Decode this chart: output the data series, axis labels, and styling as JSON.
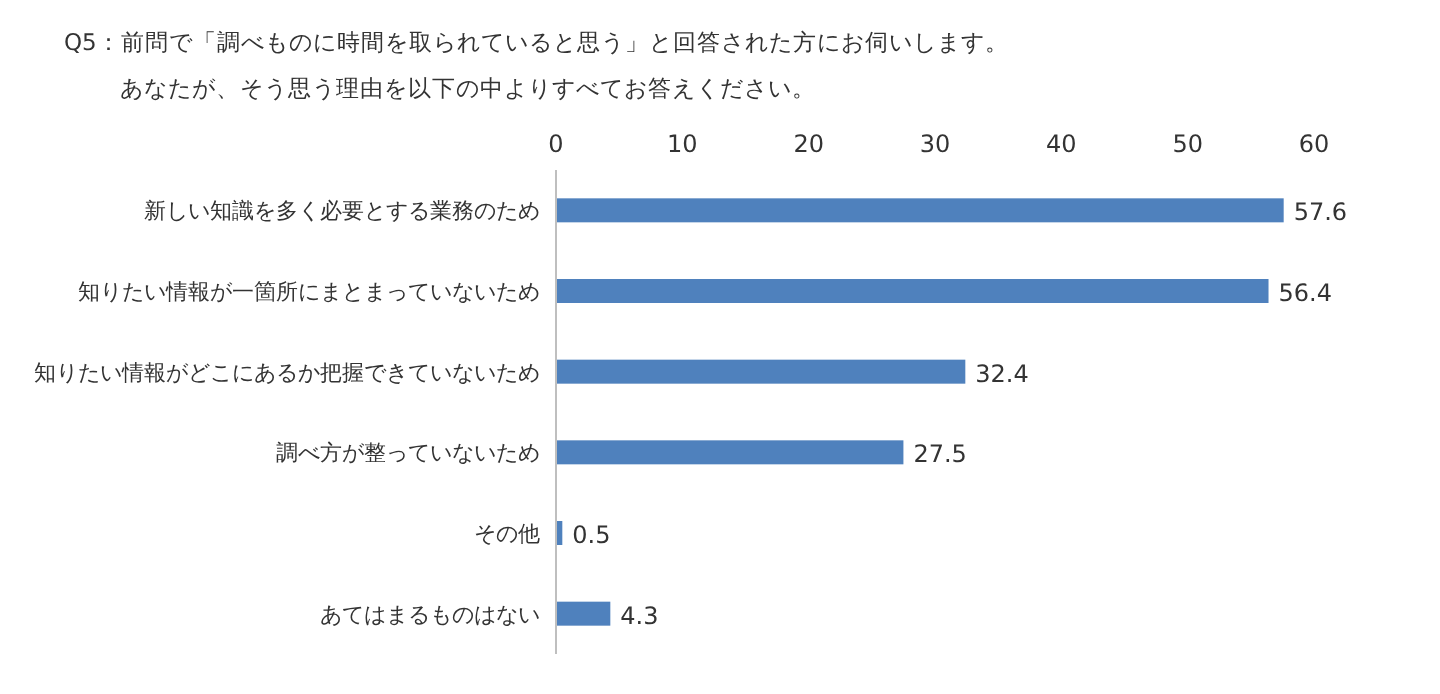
{
  "chart_data": {
    "type": "bar",
    "orientation": "horizontal",
    "title": "Q5：前問で「調べものに時間を取られていると思う」と回答された方にお伺いします。",
    "subtitle": "あなたが、そう思う理由を以下の中よりすべてお答えください。",
    "categories": [
      "新しい知識を多く必要とする業務のため",
      "知りたい情報が一箇所にまとまっていないため",
      "知りたい情報がどこにあるか把握できていないため",
      "調べ方が整っていないため",
      "その他",
      "あてはまるものはない"
    ],
    "values": [
      57.6,
      56.4,
      32.4,
      27.5,
      0.5,
      4.3
    ],
    "color": "#4f81bd",
    "xlim": [
      0,
      60
    ],
    "xticks": [
      0,
      10,
      20,
      30,
      40,
      50,
      60
    ],
    "data_labels": true
  }
}
